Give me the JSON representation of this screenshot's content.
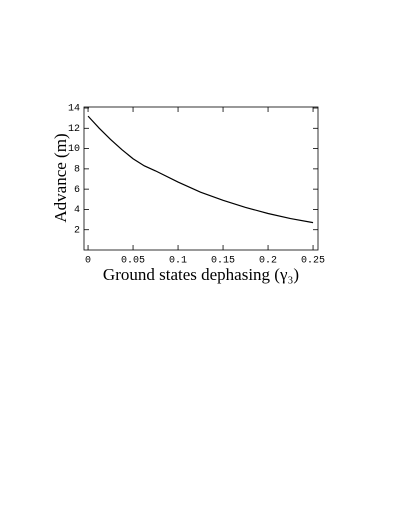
{
  "chart_data": {
    "type": "line",
    "xlabel": "Ground states dephasing (γ₃)",
    "ylabel": "Advance (m)",
    "x": [
      0,
      0.0125,
      0.025,
      0.0375,
      0.05,
      0.0625,
      0.075,
      0.1,
      0.125,
      0.15,
      0.175,
      0.2,
      0.225,
      0.25
    ],
    "series": [
      {
        "color": "#000000",
        "values": [
          13.2,
          12.0,
          10.9,
          9.9,
          9.0,
          8.3,
          7.8,
          6.7,
          5.7,
          4.9,
          4.2,
          3.6,
          3.1,
          2.7
        ]
      }
    ],
    "xlim": [
      -0.0045,
      0.2555
    ],
    "ylim": [
      0,
      14.1
    ],
    "xticks": [
      0,
      0.05,
      0.1,
      0.15,
      0.2,
      0.25
    ],
    "yticks": [
      2,
      4,
      6,
      8,
      10,
      12,
      14
    ]
  }
}
